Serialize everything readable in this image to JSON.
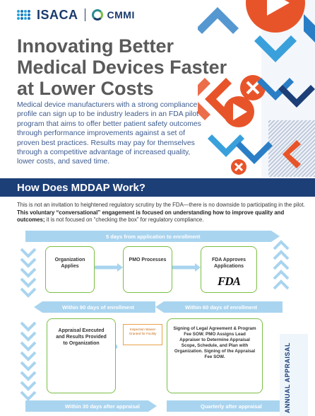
{
  "logos": {
    "isaca": "ISACA",
    "cmmi": "CMMI"
  },
  "hero": {
    "title": "Innovating Better Medical Devices Faster at Lower Costs",
    "body": "Medical device manufacturers with a strong compliance profile can sign up to be industry leaders in an FDA pilot program that aims to offer better patient safety outcomes through performance improvements against a set of proven best practices. Results may pay for themselves through a competitive advantage of increased quality, lower costs, and saved time."
  },
  "banner": {
    "title": "How Does MDDAP Work?"
  },
  "intro": {
    "plain": "This is not an invitation to heightened regulatory scrutiny by the FDA—there is no downside to participating in the pilot. ",
    "bold": "This voluntary “conversational” engagement is focused on understanding how to improve quality and outcomes;",
    "tail": " it is not focused on “checking the box” for regulatory compliance."
  },
  "process": {
    "top_band": "5 days from application to enrollment",
    "steps": {
      "org_applies": "Organization Applies",
      "pmo_processes": "PMO Processes",
      "fda_approves": "FDA Approves Applications",
      "appraisal_executed": "Appraisal Executed and Results Provided to Organization",
      "signing": "Signing of Legal Agreement & Program Fee SOW. PMO Assigns Lead Appraiser to Determine Appraisal Scope, Schedule, and Plan with Organization. Signing of the Appraisal Fee SOW."
    },
    "waiver": "Inspection Waiver Granted for Facility",
    "fda_logo": "FDA",
    "mid_left_band": "Within 90 days of enrollment",
    "mid_right_band": "Within 60 days of enrollment",
    "bottom_left_band": "Within 30 days after appraisal",
    "bottom_right_band": "Quarterly after appraisal",
    "annual": "ANNUAL APPRAISAL"
  },
  "colors": {
    "navy": "#1d3f78",
    "title_gray": "#5a5a5a",
    "body_blue": "#3d5b8e",
    "band_blue": "#a9d4ef",
    "green": "#7bbf44",
    "orange": "#e8542a",
    "arrow_blue": "#2a7ec6"
  }
}
